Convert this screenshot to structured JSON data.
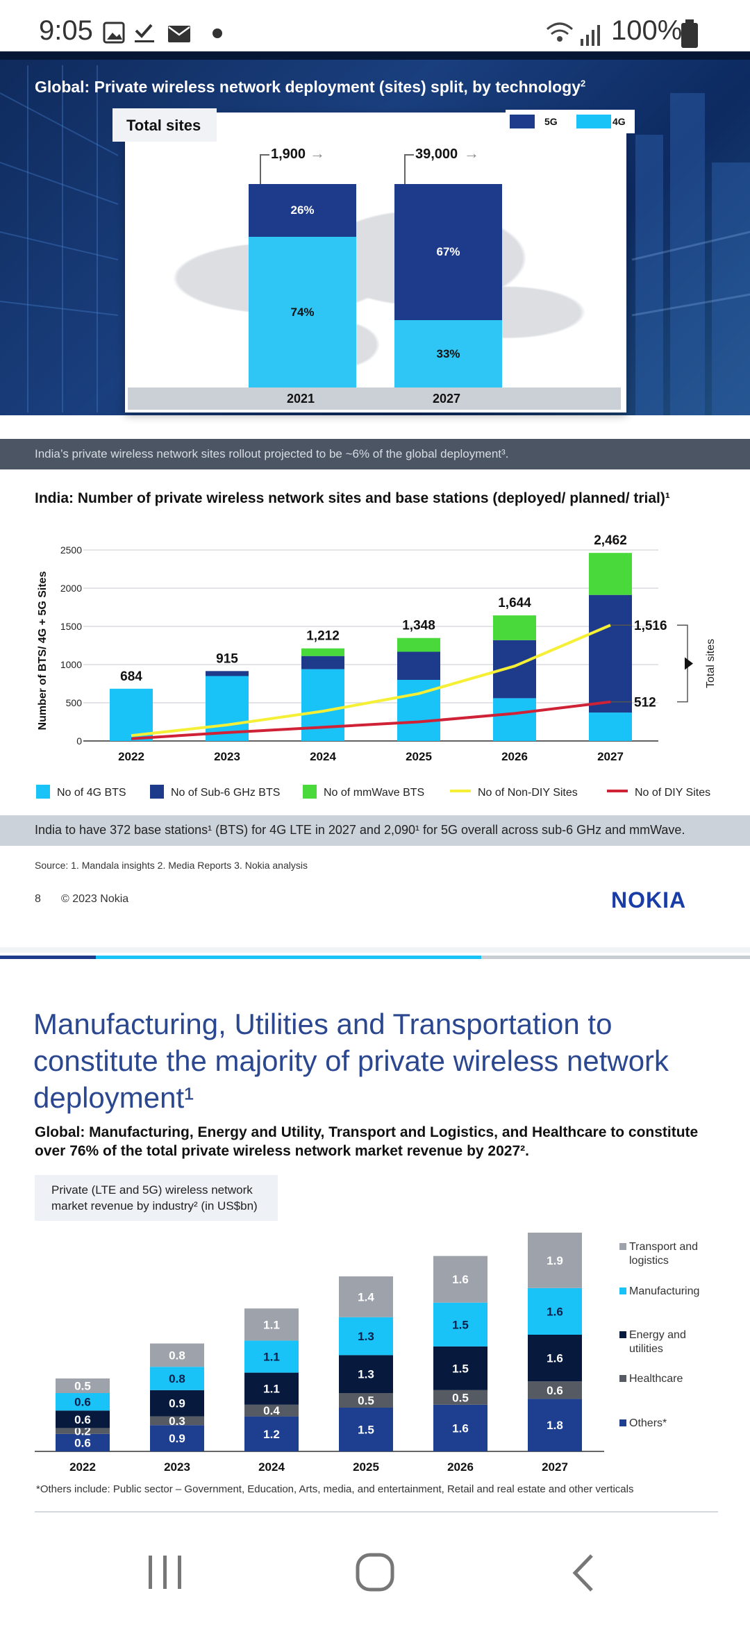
{
  "status_bar": {
    "time": "9:05",
    "battery": "100%"
  },
  "slide1": {
    "title": "Global: Private wireless network deployment (sites) split, by technology",
    "title_sup": "2",
    "card_label": "Total sites",
    "legend": [
      {
        "label": "5G",
        "color": "#1e3a8a"
      },
      {
        "label": "4G",
        "color": "#19c3f7"
      }
    ],
    "bars": [
      {
        "year": "2021",
        "total": "1,900",
        "share_5g": 0.26,
        "share_4g": 0.74,
        "label_5g": "26%",
        "label_4g": "74%"
      },
      {
        "year": "2027",
        "total": "39,000",
        "share_5g": 0.67,
        "share_4g": 0.33,
        "label_5g": "67%",
        "label_4g": "33%"
      }
    ],
    "banner": "India’s private wireless network sites rollout projected to be ~6% of the global deployment³."
  },
  "india_chart": {
    "title": "India: Number of private wireless network sites and base stations (deployed/ planned/ trial)¹",
    "ylabel": "Number of BTS/ 4G + 5G Sites",
    "right_label": "Total sites",
    "yticks": [
      "0",
      "500",
      "1000",
      "1500",
      "2000",
      "2500"
    ],
    "ylim": [
      0,
      2500
    ],
    "years": [
      "2022",
      "2023",
      "2024",
      "2025",
      "2026",
      "2027"
    ],
    "bts_4g": [
      684,
      850,
      940,
      800,
      560,
      372
    ],
    "bts_sub6": [
      0,
      65,
      172,
      368,
      760,
      1540
    ],
    "bts_mmwave": [
      0,
      0,
      100,
      180,
      324,
      550
    ],
    "totals": [
      "684",
      "915",
      "1,212",
      "1,348",
      "1,644",
      "2,462"
    ],
    "non_diy": [
      70,
      210,
      390,
      620,
      980,
      1516
    ],
    "diy": [
      30,
      110,
      180,
      250,
      360,
      512
    ],
    "non_diy_end": "1,516",
    "diy_end": "512",
    "legend": [
      {
        "label": "No of 4G BTS",
        "color": "#19c3f7"
      },
      {
        "label": "No of Sub-6 GHz BTS",
        "color": "#1e3a8a"
      },
      {
        "label": "No of mmWave BTS",
        "color": "#4ad93b"
      },
      {
        "label": "No of Non-DIY Sites",
        "color": "#f5ef36"
      },
      {
        "label": "No of DIY Sites",
        "color": "#cf2236"
      }
    ],
    "banner": "India to have 372 base stations¹ (BTS) for 4G LTE in 2027 and 2,090¹ for 5G overall across sub-6 GHz and mmWave."
  },
  "footer": {
    "source": "Source: 1. Mandala insights 2. Media Reports 3. Nokia analysis",
    "page": "8",
    "copyright": "© 2023 Nokia",
    "logo": "NOKIA"
  },
  "slide2": {
    "heading_line1": "Manufacturing, Utilities and Transportation to",
    "heading_line2": "constitute the majority of private wireless network",
    "heading_line3": "deployment¹",
    "subheading_line1": "Global: Manufacturing, Energy and Utility, Transport and Logistics, and Healthcare to constitute",
    "subheading_line2": "over 76% of the total private wireless network market revenue by 2027².",
    "box_line1": "Private (LTE and 5G) wireless network",
    "box_line2": "market revenue by industry² (in US$bn)",
    "footnote": "*Others include: Public sector – Government, Education, Arts, media, and entertainment, Retail and real estate and other verticals"
  },
  "chart_data": {
    "type": "bar",
    "title": "Private (LTE and 5G) wireless network market revenue by industry² (in US$bn)",
    "categories": [
      "2022",
      "2023",
      "2024",
      "2025",
      "2026",
      "2027"
    ],
    "series": [
      {
        "name": "Others*",
        "color": "#1e3f8f",
        "values": [
          0.6,
          0.9,
          1.2,
          1.5,
          1.6,
          1.8
        ],
        "labels": [
          "0.6",
          "0.9",
          "1.2",
          "1.5",
          "1.6",
          "1.8"
        ]
      },
      {
        "name": "Healthcare",
        "color": "#565a62",
        "values": [
          0.2,
          0.3,
          0.4,
          0.5,
          0.5,
          0.6
        ],
        "labels": [
          "0.2",
          "0.3",
          "0.4",
          "0.5",
          "0.5",
          "0.6"
        ]
      },
      {
        "name": "Energy and utilities",
        "color": "#071a3d",
        "values": [
          0.6,
          0.9,
          1.1,
          1.3,
          1.5,
          1.6
        ],
        "labels": [
          "0.6",
          "0.9",
          "1.1",
          "1.3",
          "1.5",
          "1.6"
        ]
      },
      {
        "name": "Manufacturing",
        "color": "#19c3f7",
        "values": [
          0.6,
          0.8,
          1.1,
          1.3,
          1.5,
          1.6
        ],
        "labels": [
          "0.6",
          "0.8",
          "1.1",
          "1.3",
          "1.5",
          "1.6"
        ]
      },
      {
        "name": "Transport and logistics",
        "color": "#9ea3ab",
        "values": [
          0.5,
          0.8,
          1.1,
          1.4,
          1.6,
          1.9
        ],
        "labels": [
          "0.5",
          "0.8",
          "1.1",
          "1.4",
          "1.6",
          "1.9"
        ]
      }
    ],
    "legend_order": [
      {
        "line1": "Transport and",
        "line2": "logistics",
        "color": "#9ea3ab"
      },
      {
        "line1": "Manufacturing",
        "line2": "",
        "color": "#19c3f7"
      },
      {
        "line1": "Energy and",
        "line2": "utilities",
        "color": "#071a3d"
      },
      {
        "line1": "Healthcare",
        "line2": "",
        "color": "#565a62"
      },
      {
        "line1": "Others*",
        "line2": "",
        "color": "#1e3f8f"
      }
    ]
  }
}
